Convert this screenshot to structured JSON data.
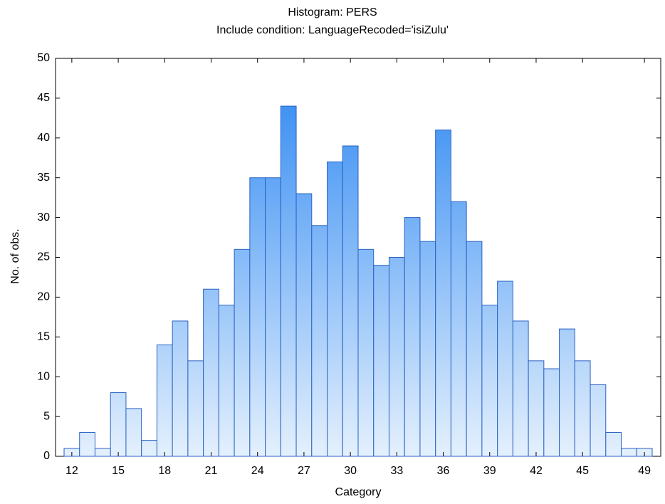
{
  "chart_data": {
    "type": "bar",
    "title": "Histogram: PERS",
    "subtitle": "Include condition: LanguageRecoded='isiZulu'",
    "x_label": "Category",
    "y_label": "No. of obs.",
    "categories": [
      12,
      null,
      null,
      15,
      null,
      null,
      18,
      null,
      null,
      21,
      null,
      null,
      24,
      null,
      null,
      27,
      null,
      null,
      30,
      null,
      null,
      33,
      null,
      null,
      36,
      null,
      null,
      39,
      null,
      null,
      42,
      null,
      null,
      45,
      null,
      null,
      null,
      49
    ],
    "values": [
      1,
      3,
      1,
      8,
      6,
      2,
      14,
      17,
      12,
      21,
      19,
      26,
      35,
      35,
      44,
      33,
      29,
      37,
      39,
      26,
      24,
      25,
      30,
      27,
      41,
      32,
      27,
      19,
      22,
      17,
      12,
      11,
      16,
      12,
      9,
      3,
      1,
      1
    ],
    "color": "#2a86f2",
    "ylim": [
      0,
      50
    ],
    "yticks": [
      0,
      5,
      10,
      15,
      20,
      25,
      30,
      35,
      40,
      45,
      50
    ]
  }
}
